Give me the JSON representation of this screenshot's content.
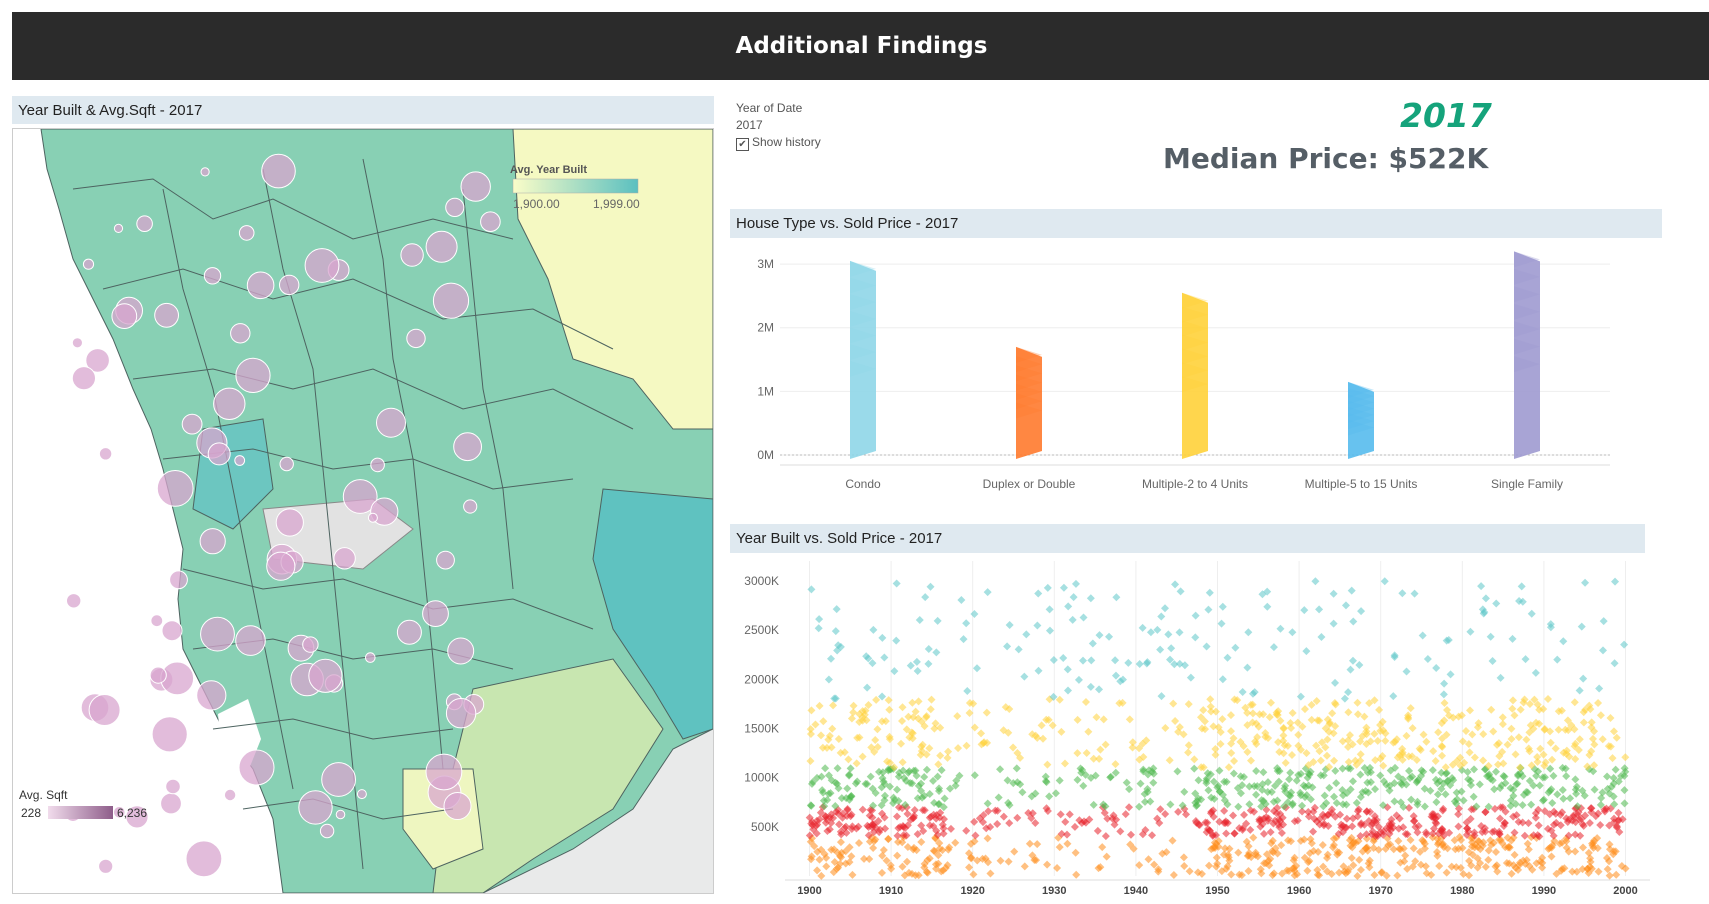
{
  "header": {
    "title": "Additional Findings"
  },
  "map_panel": {
    "title": "Year Built & Avg.Sqft - 2017",
    "legend_year": {
      "title": "Avg. Year Built",
      "min_label": "1,900.00",
      "max_label": "1,999.00",
      "color_low": "#fbfdc8",
      "color_high": "#5bc0c0"
    },
    "legend_sqft": {
      "title": "Avg. Sqft",
      "min_label": "228",
      "max_label": "6,236",
      "color_low": "#f1dcec",
      "color_high": "#8e5d8a"
    }
  },
  "filter": {
    "label": "Year of Date",
    "value": "2017",
    "show_history": "Show history"
  },
  "kpi": {
    "year": "2017",
    "median_label": "Median Price: $522K"
  },
  "chart_data": [
    {
      "type": "scatter",
      "title": "House Type vs. Sold Price - 2017",
      "categories": [
        "Condo",
        "Duplex or Double",
        "Multiple-2 to 4 Units",
        "Multiple-5 to 15 Units",
        "Single Family"
      ],
      "y_ticks": [
        "0M",
        "1M",
        "2M",
        "3M"
      ],
      "ylim": [
        0,
        3.3
      ],
      "ranges": [
        {
          "category": "Condo",
          "min": 0.0,
          "max": 3.05,
          "color": "#8fd6e8"
        },
        {
          "category": "Duplex or Double",
          "min": 0.0,
          "max": 1.7,
          "color": "#ff7a2e"
        },
        {
          "category": "Multiple-2 to 4 Units",
          "min": 0.0,
          "max": 2.55,
          "color": "#ffd23a"
        },
        {
          "category": "Multiple-5 to 15 Units",
          "min": 0.0,
          "max": 1.15,
          "color": "#57bbed"
        },
        {
          "category": "Single Family",
          "min": 0.0,
          "max": 3.2,
          "color": "#9e9ad0"
        }
      ]
    },
    {
      "type": "scatter",
      "title": "Year Built vs. Sold Price - 2017",
      "x_ticks": [
        "1900",
        "1910",
        "1920",
        "1930",
        "1940",
        "1950",
        "1960",
        "1970",
        "1980",
        "1990",
        "2000"
      ],
      "y_ticks": [
        "500K",
        "1000K",
        "1500K",
        "2000K",
        "2500K",
        "3000K"
      ],
      "xlim": [
        1897,
        2003
      ],
      "ylim": [
        0,
        3050
      ],
      "bands": [
        {
          "name": "orange",
          "color": "#ff8c1a",
          "min": 0,
          "max": 400
        },
        {
          "name": "red",
          "color": "#e8212a",
          "min": 400,
          "max": 700
        },
        {
          "name": "green",
          "color": "#4cb84c",
          "min": 700,
          "max": 1100
        },
        {
          "name": "yellow",
          "color": "#ffd23a",
          "min": 1100,
          "max": 1800
        },
        {
          "name": "teal",
          "color": "#5cc6c8",
          "min": 1800,
          "max": 3000
        }
      ]
    }
  ]
}
